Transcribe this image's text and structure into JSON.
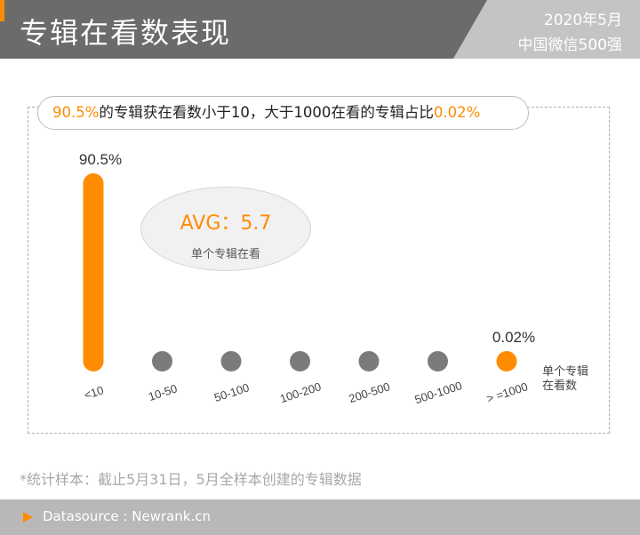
{
  "header": {
    "title": "专辑在看数表现",
    "date": "2020年5月",
    "rank": "中国微信500强"
  },
  "summary": {
    "part1": "90.5%",
    "part2": "的专辑获在看数小于10，大于1000在看的专辑占比",
    "part3": "0.02%"
  },
  "avg": {
    "value": "AVG：5.7",
    "label": "单个专辑在看"
  },
  "unit_note": {
    "line1": "单个专辑",
    "line2": "在看数"
  },
  "footnote": "*统计样本：截止5月31日，5月全样本创建的专辑数据",
  "footer": {
    "source": "Datasource : Newrank.cn"
  },
  "colors": {
    "accent": "#ff8c00",
    "neutral": "#7b7b7b",
    "header_bg": "#6b6b6b",
    "footer_bg": "#b8b8b8"
  },
  "chart_data": {
    "type": "bar",
    "categories": [
      "<10",
      "10-50",
      "50-100",
      "100-200",
      "200-500",
      "500-1000",
      ">=1000"
    ],
    "values": [
      90.5,
      7.9,
      0.8,
      0.5,
      0.2,
      0.08,
      0.02
    ],
    "unit": "%",
    "data_labels": [
      {
        "category": "<10",
        "label": "90.5%"
      },
      {
        "category": ">=1000",
        "label": "0.02%"
      }
    ],
    "highlight_categories": [
      "<10",
      ">=1000"
    ],
    "category_labels": [
      "<10",
      "10-50",
      "50-100",
      "100-200",
      "200-500",
      "500-1000",
      "> =1000"
    ],
    "title": "",
    "xlabel": "",
    "ylabel": "",
    "grid": false
  }
}
